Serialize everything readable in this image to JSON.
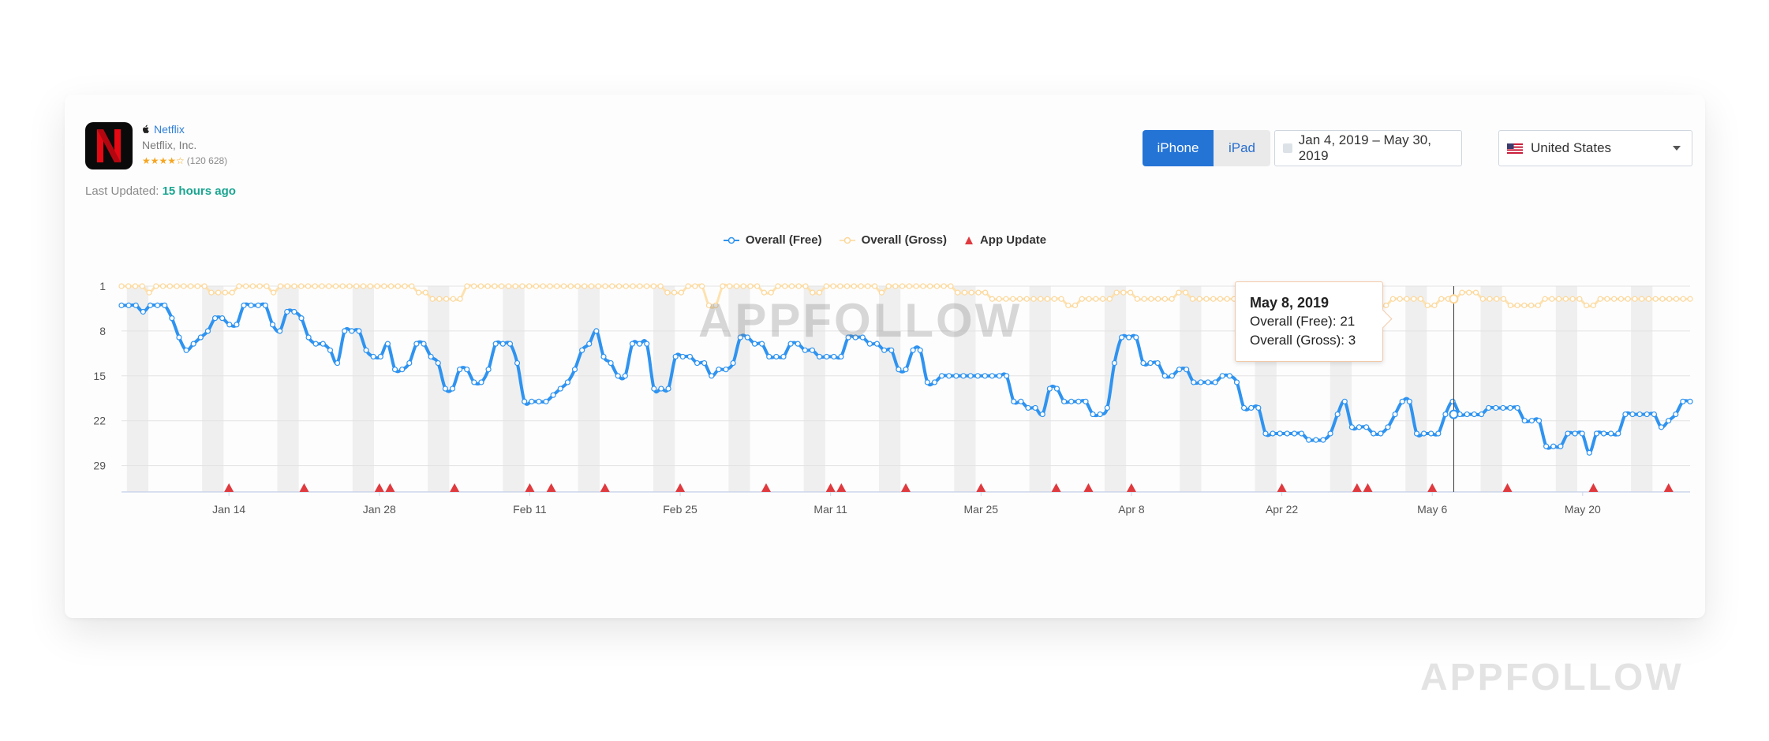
{
  "app": {
    "name": "Netflix",
    "developer": "Netflix, Inc.",
    "stars": "★★★★☆",
    "rating_count": "(120 628)",
    "last_updated_label": "Last Updated:",
    "last_updated_value": "15 hours ago"
  },
  "controls": {
    "iphone": "iPhone",
    "ipad": "iPad",
    "date_range": "Jan 4, 2019 – May 30, 2019",
    "country": "United States"
  },
  "legend": {
    "free": "Overall (Free)",
    "gross": "Overall (Gross)",
    "update": "App Update"
  },
  "colors": {
    "free": "#2f93f0",
    "gross": "#fde2b0",
    "update": "#e0393e",
    "brand_blue": "#2474d6"
  },
  "tooltip": {
    "date": "May 8, 2019",
    "free_label": "Overall (Free):",
    "free_value": "21",
    "gross_label": "Overall (Gross):",
    "gross_value": "3"
  },
  "watermarks": {
    "chart": "APPFOLLOW",
    "corner": "APPFOLLOW"
  },
  "chart_data": {
    "type": "line",
    "x_start": "2019-01-04",
    "x_end": "2019-05-30",
    "x_tick_labels": [
      "Jan 14",
      "Jan 28",
      "Feb 11",
      "Feb 25",
      "Mar 11",
      "Mar 25",
      "Apr 8",
      "Apr 22",
      "May 6",
      "May 20"
    ],
    "y_tick_labels": [
      "1",
      "8",
      "15",
      "22",
      "29"
    ],
    "y_reversed": true,
    "ylim": [
      1,
      32
    ],
    "highlighted_date": "May 8, 2019",
    "series": [
      {
        "name": "Overall (Free)",
        "values": [
          4,
          4,
          4,
          5,
          4,
          4,
          4,
          6,
          9,
          11,
          10,
          9,
          8,
          6,
          6,
          7,
          7,
          4,
          4,
          4,
          4,
          7,
          8,
          5,
          5,
          6,
          9,
          10,
          10,
          11,
          13,
          8,
          8,
          8,
          11,
          12,
          12,
          10,
          14,
          14,
          13,
          10,
          10,
          12,
          13,
          17,
          17,
          14,
          14,
          16,
          16,
          14,
          10,
          10,
          10,
          13,
          19,
          19,
          19,
          19,
          18,
          17,
          16,
          14,
          11,
          10,
          8,
          12,
          13,
          15,
          15,
          10,
          10,
          10,
          17,
          17,
          17,
          12,
          12,
          12,
          13,
          13,
          15,
          14,
          14,
          13,
          9,
          9,
          10,
          10,
          12,
          12,
          12,
          10,
          10,
          11,
          11,
          12,
          12,
          12,
          12,
          9,
          9,
          9,
          10,
          10,
          11,
          11,
          14,
          14,
          11,
          11,
          16,
          16,
          15,
          15,
          15,
          15,
          15,
          15,
          15,
          15,
          15,
          15,
          19,
          19,
          20,
          20,
          21,
          17,
          17,
          19,
          19,
          19,
          19,
          21,
          21,
          20,
          13,
          9,
          9,
          9,
          13,
          13,
          13,
          15,
          15,
          14,
          14,
          16,
          16,
          16,
          16,
          15,
          15,
          16,
          20,
          20,
          20,
          24,
          24,
          24,
          24,
          24,
          24,
          25,
          25,
          25,
          24,
          21,
          19,
          23,
          23,
          23,
          24,
          24,
          23,
          21,
          19,
          19,
          24,
          24,
          24,
          24,
          21,
          19,
          21,
          21,
          21,
          21,
          20,
          20,
          20,
          20,
          20,
          22,
          22,
          22,
          26,
          26,
          26,
          24,
          24,
          24,
          27,
          24,
          24,
          24,
          24,
          21,
          21,
          21,
          21,
          21,
          23,
          22,
          21,
          19,
          19
        ]
      },
      {
        "name": "Overall (Gross)",
        "values": [
          1,
          1,
          1,
          1,
          2,
          1,
          1,
          1,
          1,
          1,
          1,
          1,
          1,
          2,
          2,
          2,
          2,
          1,
          1,
          1,
          1,
          1,
          2,
          1,
          1,
          1,
          1,
          1,
          1,
          1,
          1,
          1,
          1,
          1,
          1,
          1,
          1,
          1,
          1,
          1,
          1,
          1,
          1,
          2,
          2,
          3,
          3,
          3,
          3,
          3,
          1,
          1,
          1,
          1,
          1,
          1,
          1,
          1,
          1,
          1,
          1,
          1,
          1,
          1,
          1,
          1,
          1,
          1,
          1,
          1,
          1,
          1,
          1,
          1,
          1,
          1,
          1,
          1,
          1,
          2,
          2,
          2,
          1,
          1,
          1,
          4,
          4,
          1,
          1,
          1,
          1,
          1,
          1,
          2,
          2,
          1,
          1,
          1,
          1,
          1,
          2,
          2,
          1,
          1,
          1,
          1,
          1,
          1,
          1,
          1,
          2,
          1,
          1,
          1,
          1,
          1,
          1,
          1,
          1,
          1,
          1,
          2,
          2,
          2,
          2,
          2,
          3,
          3,
          3,
          3,
          3,
          3,
          3,
          3,
          3,
          3,
          3,
          4,
          4,
          3,
          3,
          3,
          3,
          3,
          2,
          2,
          2,
          3,
          3,
          3,
          3,
          3,
          3,
          2,
          2,
          3,
          3,
          3,
          3,
          3,
          3,
          3,
          3,
          4,
          4,
          3,
          3,
          3,
          3,
          3,
          3,
          3,
          4,
          4,
          3,
          3,
          3,
          3,
          3,
          3,
          3,
          3,
          4,
          4,
          3,
          3,
          3,
          3,
          3,
          4,
          4,
          3,
          3,
          3,
          2,
          2,
          2,
          3,
          3,
          3,
          3,
          4,
          4,
          4,
          4,
          4,
          3,
          3,
          3,
          3,
          3,
          3,
          4,
          4,
          3,
          3,
          3,
          3,
          3,
          3,
          3,
          3,
          3,
          3,
          3,
          3,
          3,
          3
        ]
      }
    ],
    "app_update_dates": [
      "Jan 14",
      "Jan 21",
      "Jan 28",
      "Jan 29",
      "Feb 4",
      "Feb 11",
      "Feb 13",
      "Feb 18",
      "Feb 25",
      "Mar 5",
      "Mar 11",
      "Mar 12",
      "Mar 18",
      "Mar 25",
      "Apr 1",
      "Apr 4",
      "Apr 8",
      "Apr 22",
      "Apr 29",
      "Apr 30",
      "May 6",
      "May 13",
      "May 21",
      "May 28"
    ],
    "legend_position": "top-center",
    "grid": true
  }
}
